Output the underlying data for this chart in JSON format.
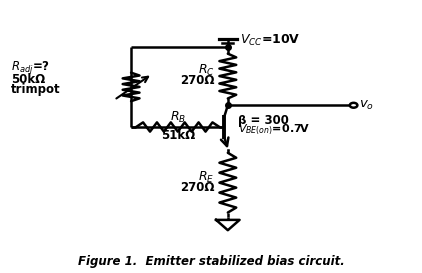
{
  "bg_color": "#ffffff",
  "line_color": "#000000",
  "line_width": 1.8,
  "fig_width": 4.22,
  "fig_height": 2.73,
  "caption": "Figure 1.  Emitter stabilized bias circuit.",
  "caption_fontsize": 8.5,
  "vcc_label": "$V_{CC}$=10V",
  "rc_label1": "$R_C$",
  "rc_label2": "270Ω",
  "radj_label1": "$R_{adj}$=?",
  "radj_label2": "50kΩ",
  "radj_label3": "trimpot",
  "rb_label1": "$R_B$",
  "rb_label2": "51kΩ",
  "beta_label": "β = 300",
  "vbe_label": "$V_{BE(on)}$=0.7V",
  "re_label1": "$R_E$",
  "re_label2": "270Ω",
  "vo_label": "$v_o$"
}
